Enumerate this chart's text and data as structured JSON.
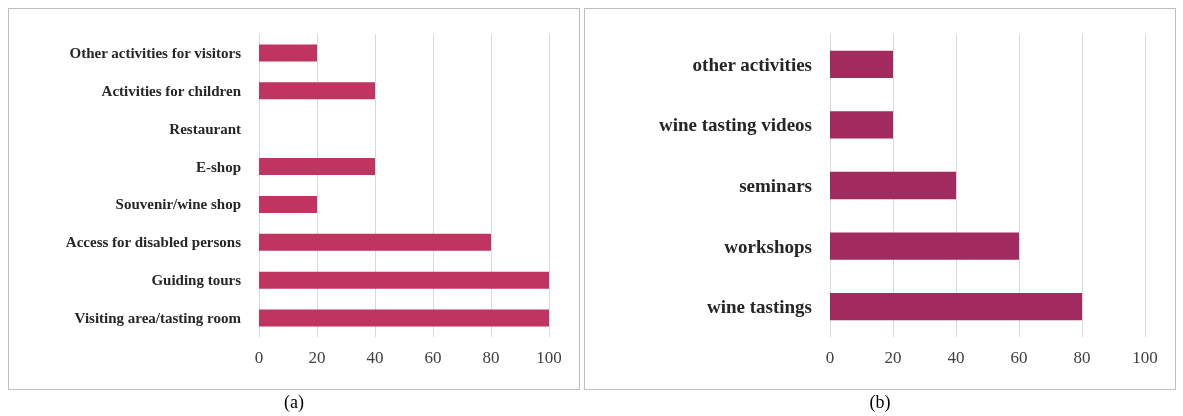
{
  "chart_data": [
    {
      "type": "bar",
      "orientation": "horizontal",
      "categories": [
        "Other activities for visitors",
        "Activities for children",
        "Restaurant",
        "E-shop",
        "Souvenir/wine shop",
        "Access for disabled persons",
        "Guiding tours",
        "Visiting area/tasting room"
      ],
      "values": [
        20,
        40,
        0,
        40,
        20,
        80,
        100,
        100
      ],
      "color": "#bf3560",
      "xlim": [
        0,
        100
      ],
      "xticks": [
        0,
        20,
        40,
        60,
        80,
        100
      ],
      "grid": "x",
      "annotations": [
        "(a)"
      ]
    },
    {
      "type": "bar",
      "orientation": "horizontal",
      "categories": [
        "other activities",
        "wine tasting videos",
        "seminars",
        "workshops",
        "wine tastings"
      ],
      "values": [
        20,
        20,
        40,
        60,
        80
      ],
      "color": "#a12a5e",
      "xlim": [
        0,
        100
      ],
      "xticks": [
        0,
        20,
        40,
        60,
        80,
        100
      ],
      "grid": "x",
      "annotations": [
        "(b)"
      ]
    }
  ]
}
